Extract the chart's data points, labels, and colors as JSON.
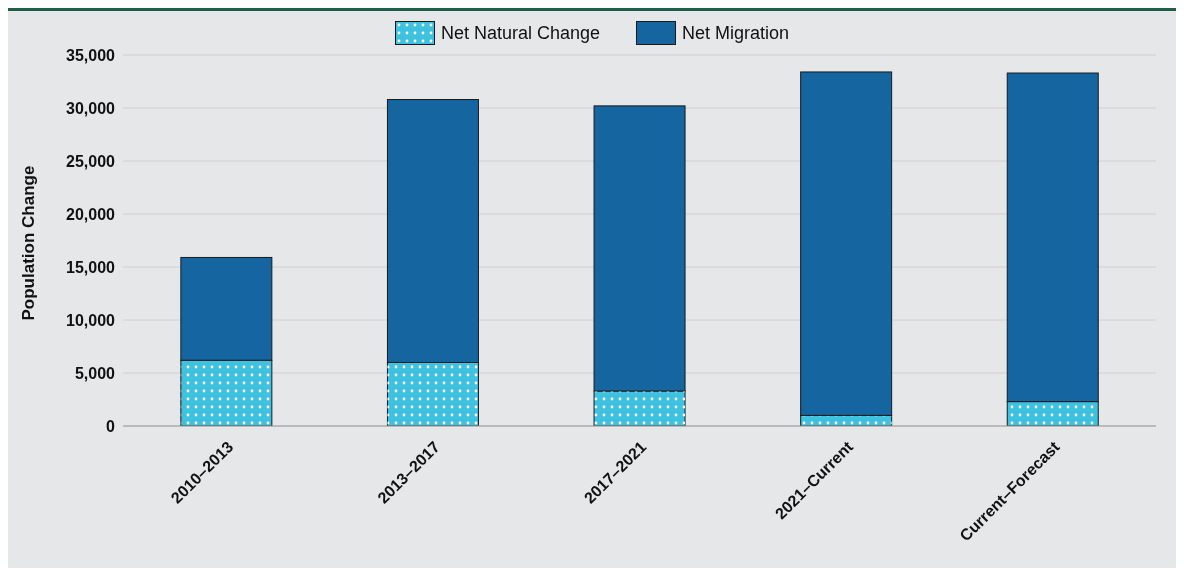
{
  "chart_data": {
    "type": "bar",
    "stacked": true,
    "ylabel": "Population Change",
    "categories": [
      "2010–2013",
      "2013–2017",
      "2017–2021",
      "2021–Current",
      "Current–Forecast"
    ],
    "series": [
      {
        "name": "Net Natural Change",
        "color": "#3fc1e0",
        "values": [
          6200,
          6000,
          3300,
          1000,
          2300
        ]
      },
      {
        "name": "Net Migration",
        "color": "#1565a0",
        "values": [
          9700,
          24800,
          26900,
          32400,
          31000
        ]
      }
    ],
    "ylim": [
      0,
      35000
    ],
    "yticks": [
      0,
      {
        "value": 5000,
        "label": "5,000"
      },
      {
        "value": 10000,
        "label": "10,000"
      },
      {
        "value": 15000,
        "label": "15,000"
      },
      {
        "value": 20000,
        "label": "20,000"
      },
      {
        "value": 25000,
        "label": "25,000"
      },
      {
        "value": 30000,
        "label": "30,000"
      },
      {
        "value": 35000,
        "label": "35,000"
      }
    ],
    "grid": "y",
    "legend": "top"
  }
}
